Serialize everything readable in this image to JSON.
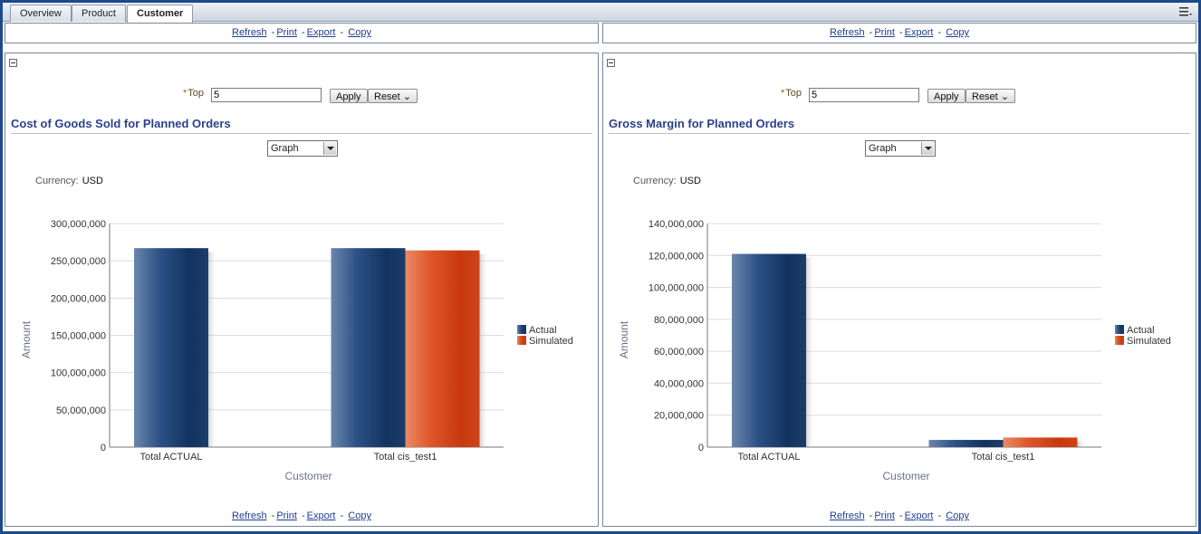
{
  "tabs": [
    {
      "label": "Overview"
    },
    {
      "label": "Product"
    },
    {
      "label": "Customer",
      "active": true
    }
  ],
  "links": {
    "refresh": "Refresh",
    "print": "Print",
    "export": "Export",
    "copy": "Copy",
    "sep": "-"
  },
  "controls": {
    "top_label": "Top",
    "top_required_marker": "*",
    "top_value": "5",
    "apply": "Apply",
    "reset": "Reset",
    "view_select": "Graph",
    "currency_label": "Currency:",
    "currency_value": "USD"
  },
  "colors": {
    "actual": "#1a3f72",
    "simulated": "#d8461a",
    "title": "#2b3f8a"
  },
  "panels": [
    {
      "title": "Cost of Goods Sold for Planned Orders",
      "chart_data": {
        "type": "bar",
        "categories": [
          "Total ACTUAL",
          "Total cis_test1"
        ],
        "series": [
          {
            "name": "Actual",
            "values": [
              267000000,
              267000000
            ]
          },
          {
            "name": "Simulated",
            "values": [
              null,
              264000000
            ]
          }
        ],
        "xlabel": "Customer",
        "ylabel": "Amount",
        "ylim": [
          0,
          300000000
        ],
        "yticks": [
          "0",
          "50,000,000",
          "100,000,000",
          "150,000,000",
          "200,000,000",
          "250,000,000",
          "300,000,000"
        ],
        "grid": true,
        "legend": "right"
      }
    },
    {
      "title": "Gross Margin for Planned Orders",
      "chart_data": {
        "type": "bar",
        "categories": [
          "Total ACTUAL",
          "Total cis_test1"
        ],
        "series": [
          {
            "name": "Actual",
            "values": [
              121000000,
              4500000
            ]
          },
          {
            "name": "Simulated",
            "values": [
              null,
              6000000
            ]
          }
        ],
        "xlabel": "Customer",
        "ylabel": "Amount",
        "ylim": [
          0,
          140000000
        ],
        "yticks": [
          "0",
          "20,000,000",
          "40,000,000",
          "60,000,000",
          "80,000,000",
          "100,000,000",
          "120,000,000",
          "140,000,000"
        ],
        "grid": true,
        "legend": "right"
      }
    }
  ]
}
